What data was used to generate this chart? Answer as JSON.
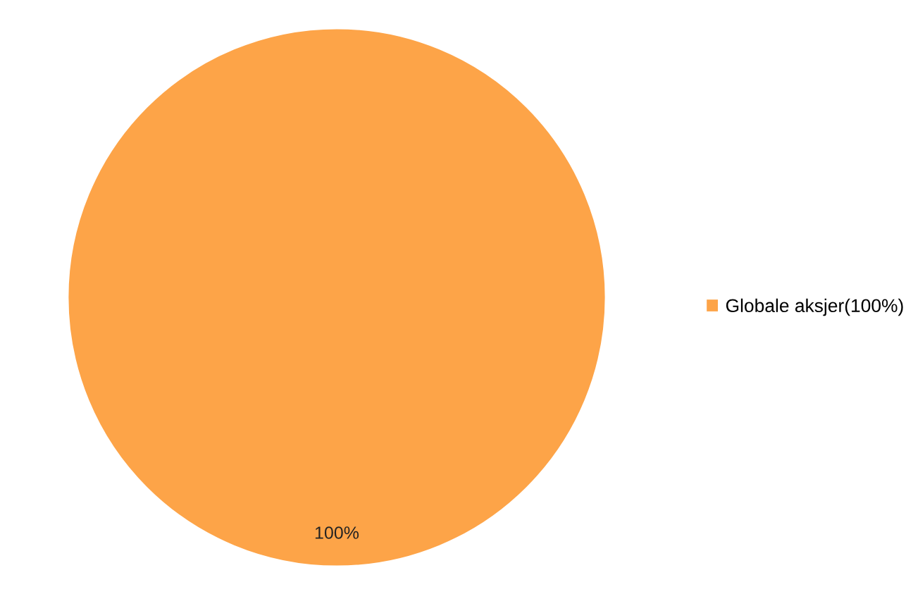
{
  "chart_data": {
    "type": "pie",
    "categories": [
      "Globale aksjer(100%)"
    ],
    "values": [
      100
    ],
    "colors": [
      "#fda448"
    ],
    "value_labels": [
      "100%"
    ],
    "legend": "right"
  }
}
